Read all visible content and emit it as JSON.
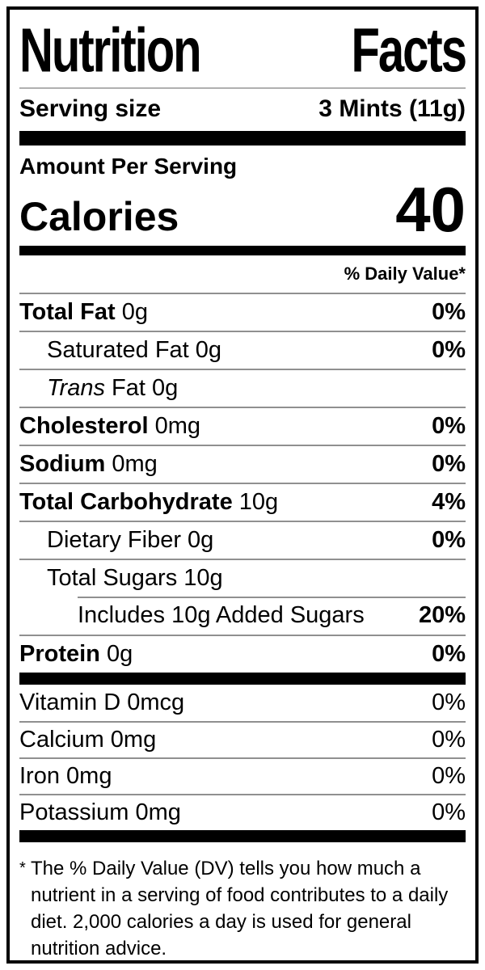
{
  "label": {
    "title_word1": "Nutrition",
    "title_word2": "Facts",
    "serving": {
      "label": "Serving size",
      "value": "3 Mints (11g)"
    },
    "amount_per_serving": "Amount Per Serving",
    "calories": {
      "label": "Calories",
      "value": "40"
    },
    "daily_value_header": "% Daily Value*",
    "rows": [
      {
        "name": "Total Fat",
        "amount": " 0g",
        "dv": "0%"
      },
      {
        "name": "Saturated Fat",
        "amount": " 0g",
        "dv": "0%"
      },
      {
        "name": "Trans",
        "amount": " Fat 0g",
        "dv": ""
      },
      {
        "name": "Cholesterol",
        "amount": " 0mg",
        "dv": "0%"
      },
      {
        "name": "Sodium",
        "amount": " 0mg",
        "dv": "0%"
      },
      {
        "name": "Total Carbohydrate",
        "amount": " 10g",
        "dv": "4%"
      },
      {
        "name": "Dietary Fiber",
        "amount": " 0g",
        "dv": "0%"
      },
      {
        "name": "Total Sugars",
        "amount": " 10g",
        "dv": ""
      },
      {
        "name": "Includes 10g Added Sugars",
        "amount": "",
        "dv": "20%"
      },
      {
        "name": "Protein",
        "amount": " 0g",
        "dv": "0%"
      }
    ],
    "vitamins": [
      {
        "name": "Vitamin D 0mcg",
        "dv": "0%"
      },
      {
        "name": "Calcium 0mg",
        "dv": "0%"
      },
      {
        "name": "Iron 0mg",
        "dv": "0%"
      },
      {
        "name": "Potassium 0mg",
        "dv": "0%"
      }
    ],
    "footnote": {
      "marker": "*",
      "text": "The % Daily Value (DV) tells you how much a nutrient in a serving of food contributes to a daily diet. 2,000 calories a day is used for general nutrition advice."
    }
  },
  "colors": {
    "text": "#000000",
    "background": "#ffffff",
    "divider": "#909090",
    "bar": "#000000"
  }
}
